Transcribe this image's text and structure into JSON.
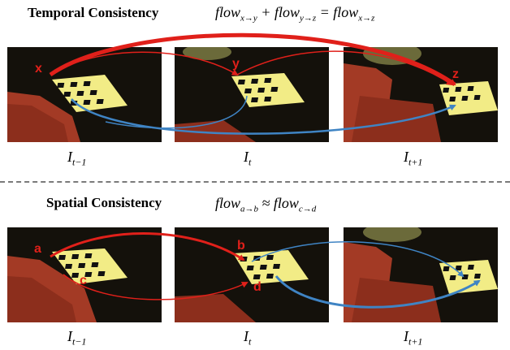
{
  "top": {
    "title": "Temporal Consistency",
    "formula": {
      "t1": "flow",
      "s1": "x→y",
      "op1": " + ",
      "t2": "flow",
      "s2": "y→z",
      "op2": " = ",
      "t3": "flow",
      "s3": "x→z"
    },
    "labels": {
      "x": "x",
      "y": "y",
      "z": "z"
    }
  },
  "bottom": {
    "title": "Spatial Consistency",
    "formula": {
      "t1": "flow",
      "s1": "a→b",
      "op1": " ≈ ",
      "t2": "flow",
      "s2": "c→d"
    },
    "labels": {
      "a": "a",
      "b": "b",
      "c": "c",
      "d": "d"
    }
  },
  "captions": {
    "base": "I",
    "prev": "t−1",
    "cur": "t",
    "next": "t+1"
  },
  "colors": {
    "red_arrow": "#e0201a",
    "blue_arrow": "#3f84c4",
    "couch": "#a33a25",
    "board": "#f2ec86"
  }
}
